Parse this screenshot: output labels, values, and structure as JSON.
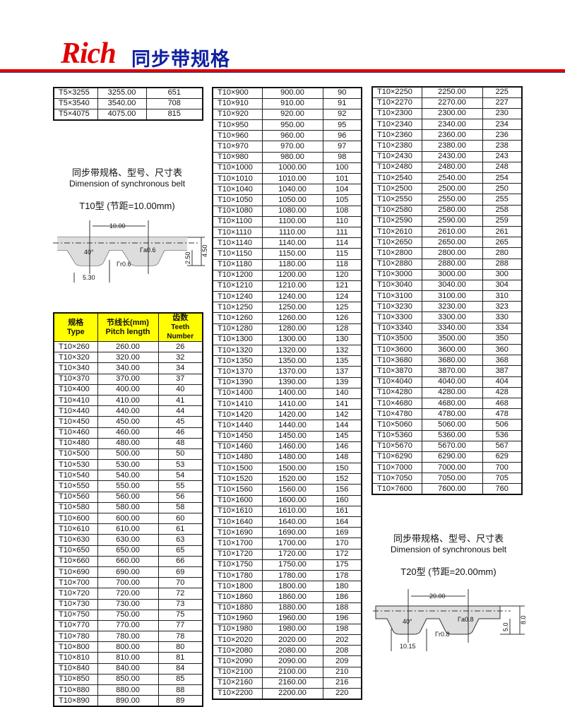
{
  "header": {
    "logo": "Rich",
    "title": "同步带规格",
    "colors": {
      "logo": "#e00000",
      "title": "#1020a0",
      "rule": "#e00000",
      "table_header": "#ffff00"
    }
  },
  "table_t5": [
    [
      "T5×3255",
      "3255.00",
      "651"
    ],
    [
      "T5×3540",
      "3540.00",
      "708"
    ],
    [
      "T5×4075",
      "4075.00",
      "815"
    ]
  ],
  "t10": {
    "caption_zh": "同步带规格、型号、尺寸表",
    "caption_en": "Dimension of synchronous belt",
    "type_label": "T10型 (节距=10.00mm)",
    "dims": {
      "pitch": "10.00",
      "angle": "40°",
      "ra": "Γa0.6",
      "rr": "Γr0.6",
      "width": "5.30",
      "h1": "2.50",
      "h2": "4.50"
    }
  },
  "t20": {
    "caption_zh": "同步带规格、型号、尺寸表",
    "caption_en": "Dimension of synchronous belt",
    "type_label": "T20型 (节距=20.00mm)",
    "dims": {
      "pitch": "20.00",
      "angle": "40°",
      "ra": "Γa0.8",
      "rr": "Γr0.8",
      "width": "10.15",
      "h1": "5.0",
      "h2": "8.0"
    }
  },
  "table_header": {
    "type_zh": "规格",
    "type_en": "Type",
    "len_zh": "节线长(mm)",
    "len_en": "Pitch length",
    "teeth_zh": "齿数",
    "teeth_en": "Teeth Number"
  },
  "table_t10_a": [
    260,
    320,
    340,
    370,
    400,
    410,
    440,
    450,
    460,
    480,
    500,
    530,
    540,
    550,
    560,
    580,
    600,
    610,
    630,
    650,
    660,
    690,
    700,
    720,
    730,
    750,
    770,
    780,
    800,
    810,
    840,
    850,
    880,
    890
  ],
  "table_t10_b": [
    900,
    910,
    920,
    950,
    960,
    970,
    980,
    1000,
    1010,
    1040,
    1050,
    1080,
    1100,
    1110,
    1140,
    1150,
    1180,
    1200,
    1210,
    1240,
    1250,
    1260,
    1280,
    1300,
    1320,
    1350,
    1370,
    1390,
    1400,
    1410,
    1420,
    1440,
    1450,
    1460,
    1480,
    1500,
    1520,
    1560,
    1600,
    1610,
    1640,
    1690,
    1700,
    1720,
    1750,
    1780,
    1800,
    1860,
    1880,
    1960,
    1980,
    2020,
    2080,
    2090,
    2100,
    2160,
    2200
  ],
  "table_t10_c": [
    2250,
    2270,
    2300,
    2340,
    2360,
    2380,
    2430,
    2480,
    2540,
    2500,
    2550,
    2580,
    2590,
    2610,
    2650,
    2800,
    2880,
    3000,
    3040,
    3100,
    3230,
    3300,
    3340,
    3500,
    3600,
    3680,
    3870,
    4040,
    4280,
    4680,
    4780,
    5060,
    5360,
    5670,
    6290,
    7000,
    7050,
    7600
  ]
}
